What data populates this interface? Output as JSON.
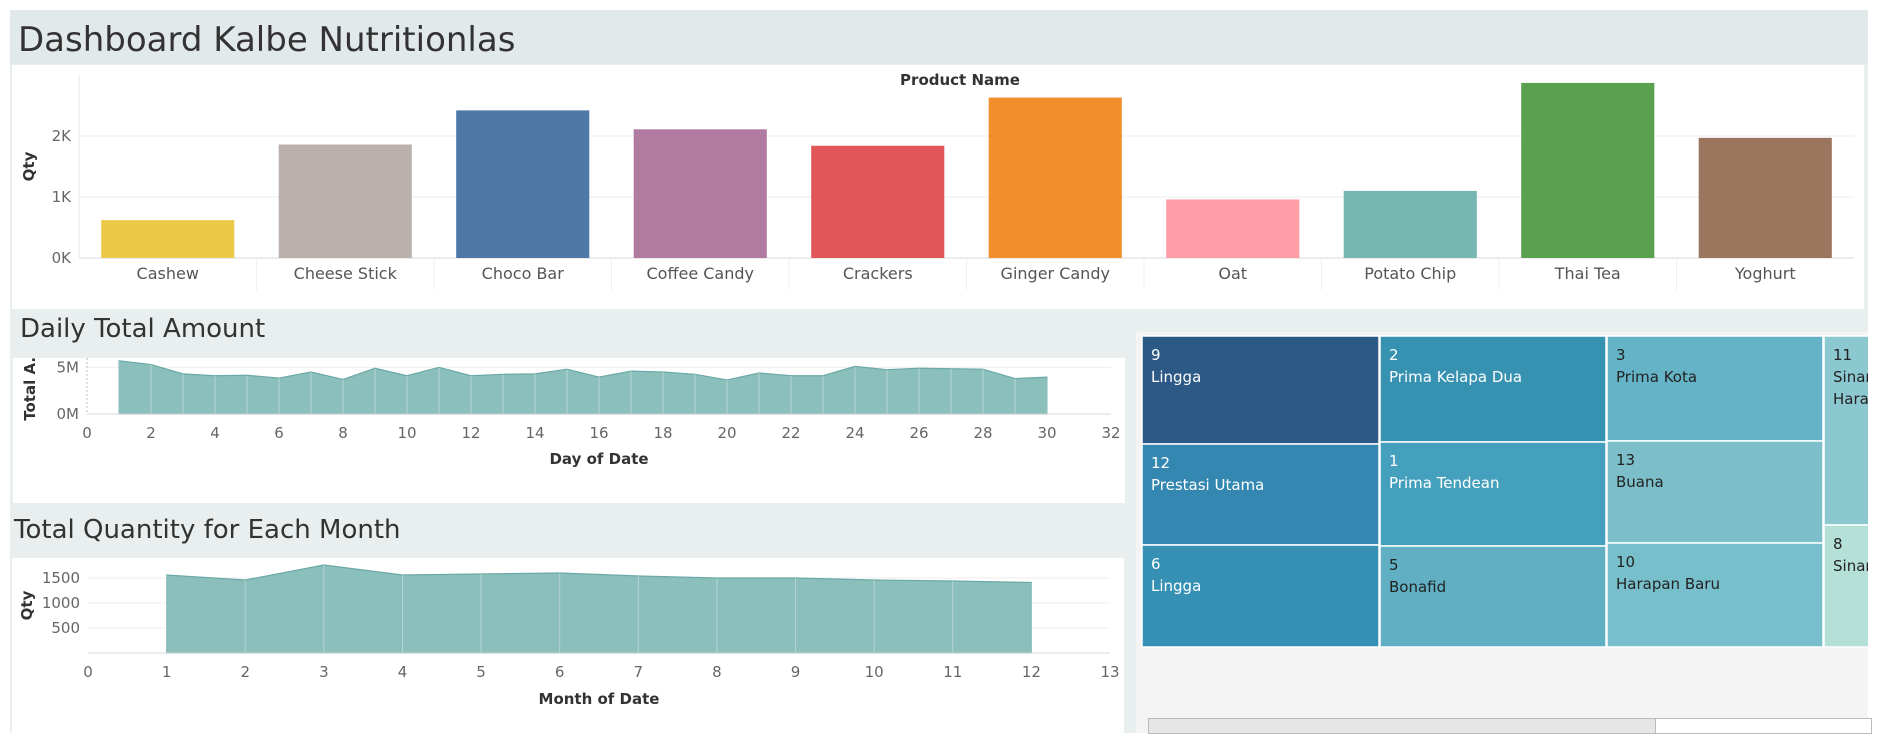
{
  "dashboard": {
    "title": "Dashboard Kalbe Nutritionlas"
  },
  "charts": {
    "daily_title": "Daily Total Amount",
    "monthly_title": "Total Quantity for Each Month"
  },
  "chart_data": [
    {
      "id": "product-qty",
      "type": "bar",
      "title": "Product Name",
      "xlabel": "",
      "ylabel": "Qty",
      "ylim": [
        0,
        3000
      ],
      "yticks": [
        0,
        1000,
        2000
      ],
      "ytick_labels": [
        "0K",
        "1K",
        "2K"
      ],
      "grid": true,
      "categories": [
        "Cashew",
        "Cheese Stick",
        "Choco Bar",
        "Coffee Candy",
        "Crackers",
        "Ginger Candy",
        "Oat",
        "Potato Chip",
        "Thai Tea",
        "Yoghurt"
      ],
      "values": [
        620,
        1860,
        2420,
        2110,
        1840,
        2630,
        960,
        1100,
        2870,
        1970
      ],
      "colors": [
        "#EDC948",
        "#BAB0AC",
        "#4E79A7",
        "#B07AA1",
        "#E15759",
        "#F28E2B",
        "#FF9DA7",
        "#76B7B2",
        "#59A14F",
        "#9C755F"
      ]
    },
    {
      "id": "daily-total-amount",
      "type": "area",
      "title": "",
      "xlabel": "Day of Date",
      "ylabel": "Total A..",
      "xlim": [
        0,
        32
      ],
      "xticks": [
        0,
        2,
        4,
        6,
        8,
        10,
        12,
        14,
        16,
        18,
        20,
        22,
        24,
        26,
        28,
        30,
        32
      ],
      "ylim": [
        0,
        6000000
      ],
      "yticks": [
        0,
        5000000
      ],
      "ytick_labels": [
        "0M",
        "5M"
      ],
      "color": "#8bbfbc",
      "x": [
        1,
        2,
        3,
        4,
        5,
        6,
        7,
        8,
        9,
        10,
        11,
        12,
        13,
        14,
        15,
        16,
        17,
        18,
        19,
        20,
        21,
        22,
        23,
        24,
        25,
        26,
        27,
        28,
        29,
        30
      ],
      "y": [
        5700000,
        5300000,
        4300000,
        4100000,
        4150000,
        3850000,
        4500000,
        3700000,
        4900000,
        4100000,
        5000000,
        4100000,
        4250000,
        4300000,
        4800000,
        3950000,
        4600000,
        4500000,
        4250000,
        3650000,
        4400000,
        4100000,
        4100000,
        5100000,
        4750000,
        4900000,
        4850000,
        4800000,
        3800000,
        3950000
      ]
    },
    {
      "id": "monthly-qty",
      "type": "area",
      "title": "",
      "xlabel": "Month of Date",
      "ylabel": "Qty",
      "xlim": [
        0,
        13
      ],
      "xticks": [
        0,
        1,
        2,
        3,
        4,
        5,
        6,
        7,
        8,
        9,
        10,
        11,
        12,
        13
      ],
      "ylim": [
        0,
        1900
      ],
      "yticks": [
        500,
        1000,
        1500
      ],
      "color": "#8bbfbc",
      "x": [
        1,
        2,
        3,
        4,
        5,
        6,
        7,
        8,
        9,
        10,
        11,
        12
      ],
      "y": [
        1560,
        1460,
        1760,
        1560,
        1580,
        1600,
        1540,
        1500,
        1500,
        1460,
        1440,
        1410
      ]
    },
    {
      "id": "store-treemap",
      "type": "treemap",
      "items": [
        {
          "num": "9",
          "name": "Lingga",
          "color": "#2c5985",
          "text": "#ffffff"
        },
        {
          "num": "12",
          "name": "Prestasi Utama",
          "color": "#3487b0",
          "text": "#ffffff"
        },
        {
          "num": "6",
          "name": "Lingga",
          "color": "#3590b3",
          "text": "#ffffff"
        },
        {
          "num": "2",
          "name": "Prima Kelapa Dua",
          "color": "#3791b0",
          "text": "#ffffff"
        },
        {
          "num": "1",
          "name": "Prima Tendean",
          "color": "#44a0bc",
          "text": "#ffffff"
        },
        {
          "num": "5",
          "name": "Bonafid",
          "color": "#60afc2",
          "text": "#222222"
        },
        {
          "num": "3",
          "name": "Prima Kota",
          "color": "#65b3c6",
          "text": "#222222"
        },
        {
          "num": "13",
          "name": "Buana",
          "color": "#7cbfcb",
          "text": "#222222"
        },
        {
          "num": "10",
          "name": "Harapan Baru",
          "color": "#78bfcc",
          "text": "#222222"
        },
        {
          "num": "11",
          "name": "Sinar",
          "name2": "Harap",
          "color": "#8cc8d0",
          "text": "#222222"
        },
        {
          "num": "8",
          "name": "Sinar",
          "color": "#b5e0d8",
          "text": "#222222"
        }
      ]
    }
  ]
}
